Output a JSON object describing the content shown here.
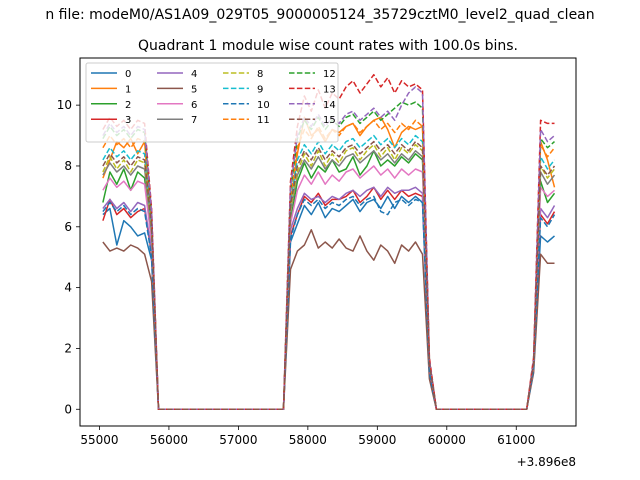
{
  "figure": {
    "suptitle": "n file: modeM0/AS1A09_029T05_9000005124_35729cztM0_level2_quad_clean",
    "title": "Quadrant 1 module wise count rates with 100.0s bins."
  },
  "chart_data": {
    "type": "line",
    "title": "Quadrant 1 module wise count rates with 100.0s bins.",
    "xlabel": "",
    "ylabel": "",
    "x_offset_label": "+3.896e8",
    "xlim": [
      54720,
      61860
    ],
    "ylim": [
      -0.55,
      11.55
    ],
    "xticks": [
      55000,
      56000,
      57000,
      58000,
      59000,
      60000,
      61000
    ],
    "yticks": [
      0,
      2,
      4,
      6,
      8,
      10
    ],
    "grid": false,
    "legend": {
      "placement": "top-left",
      "columns": 4
    },
    "x": [
      55050,
      55150,
      55250,
      55350,
      55450,
      55550,
      55650,
      55750,
      55850,
      57650,
      57750,
      57850,
      57950,
      58050,
      58150,
      58250,
      58350,
      58450,
      58550,
      58650,
      58750,
      58850,
      58950,
      59050,
      59150,
      59250,
      59350,
      59450,
      59550,
      59650,
      59750,
      59850,
      61150,
      61250,
      61350,
      61450,
      61550
    ],
    "series": [
      {
        "name": "0",
        "color": "#1f77b4",
        "style": "solid",
        "values": [
          6.4,
          6.6,
          5.4,
          6.2,
          6.0,
          5.7,
          5.8,
          4.9,
          0,
          0,
          5.5,
          6.1,
          6.7,
          6.4,
          6.8,
          6.3,
          6.6,
          6.5,
          6.7,
          6.9,
          6.5,
          6.8,
          6.9,
          6.6,
          7.0,
          6.6,
          7.0,
          6.8,
          7.0,
          6.8,
          1.2,
          0,
          0,
          1.4,
          5.7,
          5.5,
          5.7
        ]
      },
      {
        "name": "1",
        "color": "#ff7f0e",
        "style": "solid",
        "values": [
          7.6,
          8.2,
          8.8,
          8.6,
          8.9,
          8.4,
          8.8,
          5.8,
          0,
          0,
          6.8,
          8.4,
          9.6,
          9.0,
          9.2,
          8.8,
          9.2,
          9.1,
          9.3,
          9.4,
          9.0,
          9.3,
          9.5,
          9.6,
          9.2,
          8.6,
          9.1,
          9.3,
          9.2,
          9.3,
          1.5,
          0,
          0,
          1.5,
          8.8,
          8.2,
          7.3
        ]
      },
      {
        "name": "2",
        "color": "#2ca02c",
        "style": "solid",
        "values": [
          6.8,
          7.8,
          7.4,
          7.9,
          7.2,
          7.8,
          7.6,
          5.5,
          0,
          0,
          6.2,
          7.5,
          8.1,
          7.6,
          8.0,
          7.8,
          8.2,
          7.8,
          7.9,
          8.3,
          7.7,
          8.0,
          8.5,
          8.0,
          8.2,
          8.0,
          8.3,
          8.1,
          8.4,
          8.2,
          1.4,
          0,
          0,
          1.4,
          7.5,
          6.8,
          7.1
        ]
      },
      {
        "name": "3",
        "color": "#d62728",
        "style": "solid",
        "values": [
          6.2,
          6.9,
          6.4,
          6.6,
          6.3,
          6.5,
          6.6,
          5.1,
          0,
          0,
          5.7,
          6.4,
          7.0,
          6.8,
          7.1,
          6.7,
          6.9,
          6.9,
          7.0,
          7.2,
          6.8,
          7.0,
          7.3,
          6.9,
          7.2,
          6.9,
          7.2,
          7.0,
          7.1,
          7.0,
          1.3,
          0,
          0,
          1.4,
          6.4,
          6.1,
          6.5
        ]
      },
      {
        "name": "4",
        "color": "#9467bd",
        "style": "solid",
        "values": [
          6.6,
          6.9,
          6.6,
          6.8,
          6.5,
          6.8,
          6.7,
          5.2,
          0,
          0,
          5.9,
          6.6,
          7.1,
          6.9,
          7.0,
          6.8,
          7.0,
          6.9,
          7.1,
          7.2,
          7.0,
          7.2,
          7.3,
          7.0,
          7.3,
          7.1,
          7.2,
          7.2,
          7.3,
          7.1,
          1.3,
          0,
          0,
          1.4,
          6.6,
          6.3,
          6.7
        ]
      },
      {
        "name": "5",
        "color": "#8c564b",
        "style": "solid",
        "values": [
          5.5,
          5.2,
          5.3,
          5.2,
          5.4,
          5.3,
          5.1,
          4.2,
          0,
          0,
          4.6,
          5.2,
          5.4,
          5.9,
          5.3,
          5.5,
          5.3,
          5.6,
          5.3,
          5.2,
          5.7,
          5.2,
          4.9,
          5.4,
          5.2,
          4.8,
          5.4,
          5.2,
          5.5,
          5.1,
          1.0,
          0,
          0,
          1.2,
          5.1,
          4.8,
          4.8
        ]
      },
      {
        "name": "6",
        "color": "#e377c2",
        "style": "solid",
        "values": [
          7.2,
          7.6,
          7.3,
          7.5,
          7.2,
          7.5,
          7.4,
          5.5,
          0,
          0,
          6.1,
          7.2,
          7.7,
          7.4,
          7.8,
          7.4,
          7.7,
          7.5,
          7.8,
          7.9,
          7.6,
          7.8,
          8.0,
          7.7,
          7.9,
          7.6,
          7.9,
          7.7,
          7.9,
          7.8,
          1.4,
          0,
          0,
          1.4,
          7.3,
          7.0,
          7.2
        ]
      },
      {
        "name": "7",
        "color": "#7f7f7f",
        "style": "solid",
        "values": [
          7.7,
          8.1,
          7.8,
          8.0,
          7.7,
          8.0,
          7.9,
          5.8,
          0,
          0,
          6.5,
          7.7,
          8.2,
          7.9,
          8.3,
          7.9,
          8.2,
          8.0,
          8.3,
          8.4,
          8.1,
          8.3,
          8.5,
          8.2,
          8.4,
          8.1,
          8.4,
          8.2,
          8.5,
          8.3,
          1.5,
          0,
          0,
          1.5,
          7.8,
          7.4,
          7.7
        ]
      },
      {
        "name": "8",
        "color": "#bcbd22",
        "style": "dashed",
        "values": [
          7.8,
          8.3,
          7.9,
          8.2,
          7.8,
          8.2,
          8.1,
          5.9,
          0,
          0,
          6.6,
          7.8,
          8.4,
          8.0,
          8.5,
          8.0,
          8.4,
          8.1,
          8.5,
          8.6,
          8.2,
          8.5,
          8.7,
          8.3,
          8.6,
          8.2,
          8.6,
          8.4,
          8.7,
          8.5,
          1.5,
          0,
          0,
          1.5,
          8.0,
          7.6,
          7.9
        ]
      },
      {
        "name": "9",
        "color": "#17becf",
        "style": "dashed",
        "values": [
          8.2,
          8.6,
          8.3,
          8.5,
          8.2,
          8.5,
          8.4,
          6.0,
          0,
          0,
          6.8,
          8.2,
          8.7,
          8.4,
          8.8,
          8.4,
          8.7,
          8.5,
          8.8,
          8.9,
          8.6,
          8.8,
          9.0,
          8.7,
          8.9,
          8.6,
          8.9,
          8.7,
          9.0,
          8.8,
          1.5,
          0,
          0,
          1.5,
          8.3,
          7.9,
          8.2
        ]
      },
      {
        "name": "10",
        "color": "#1f77b4",
        "style": "dashed",
        "values": [
          6.5,
          6.8,
          6.5,
          6.7,
          6.4,
          6.6,
          6.5,
          5.0,
          0,
          0,
          5.6,
          6.4,
          6.9,
          6.7,
          6.9,
          6.6,
          6.8,
          6.7,
          6.9,
          7.0,
          6.7,
          6.9,
          7.0,
          6.5,
          6.4,
          6.8,
          6.9,
          6.7,
          6.9,
          6.8,
          1.2,
          0,
          0,
          1.3,
          6.3,
          6.0,
          6.4
        ]
      },
      {
        "name": "11",
        "color": "#ff7f0e",
        "style": "dashed",
        "values": [
          8.6,
          9.0,
          8.7,
          8.9,
          8.6,
          8.9,
          8.8,
          6.2,
          0,
          0,
          7.0,
          8.6,
          9.2,
          8.9,
          9.3,
          8.9,
          9.2,
          9.0,
          9.3,
          9.4,
          9.1,
          9.3,
          9.5,
          9.2,
          9.4,
          9.1,
          9.4,
          9.2,
          9.5,
          9.3,
          1.6,
          0,
          0,
          1.6,
          8.7,
          8.3,
          8.6
        ]
      },
      {
        "name": "12",
        "color": "#2ca02c",
        "style": "dashed",
        "values": [
          8.9,
          9.3,
          9.0,
          9.2,
          8.9,
          9.2,
          9.1,
          6.4,
          0,
          0,
          7.2,
          8.9,
          9.5,
          9.2,
          9.6,
          9.2,
          9.5,
          9.3,
          9.6,
          9.7,
          9.4,
          9.6,
          9.8,
          9.5,
          9.7,
          9.9,
          10.1,
          10.0,
          10.1,
          9.9,
          1.6,
          0,
          0,
          1.6,
          8.9,
          8.6,
          8.8
        ]
      },
      {
        "name": "13",
        "color": "#d62728",
        "style": "dashed",
        "values": [
          9.2,
          9.6,
          9.3,
          9.5,
          9.2,
          9.5,
          9.4,
          6.6,
          0,
          0,
          7.5,
          9.3,
          10.3,
          9.8,
          10.5,
          9.9,
          10.4,
          10.2,
          10.6,
          10.8,
          10.4,
          10.7,
          11.0,
          10.6,
          10.9,
          10.4,
          10.8,
          10.6,
          10.7,
          10.5,
          1.7,
          0,
          0,
          1.7,
          9.5,
          9.4,
          9.4
        ]
      },
      {
        "name": "14",
        "color": "#9467bd",
        "style": "dashed",
        "values": [
          9.0,
          9.4,
          9.1,
          9.3,
          9.0,
          9.3,
          9.2,
          6.5,
          0,
          0,
          7.3,
          9.0,
          9.6,
          9.3,
          9.7,
          9.3,
          9.6,
          9.4,
          9.7,
          9.8,
          9.5,
          9.7,
          9.9,
          9.6,
          9.8,
          9.5,
          10.0,
          10.4,
          10.6,
          10.4,
          1.6,
          0,
          0,
          1.6,
          9.2,
          8.8,
          9.0
        ]
      },
      {
        "name": "15",
        "color": "#8c564b",
        "style": "dashed",
        "values": [
          8.0,
          8.4,
          8.1,
          8.3,
          8.0,
          8.3,
          8.2,
          6.0,
          0,
          0,
          6.7,
          8.0,
          8.5,
          8.2,
          8.6,
          8.2,
          8.5,
          8.3,
          8.6,
          8.7,
          8.4,
          8.6,
          8.8,
          8.5,
          8.7,
          8.4,
          8.7,
          8.5,
          8.8,
          8.6,
          1.5,
          0,
          0,
          1.5,
          8.0,
          7.7,
          8.0
        ]
      }
    ]
  }
}
